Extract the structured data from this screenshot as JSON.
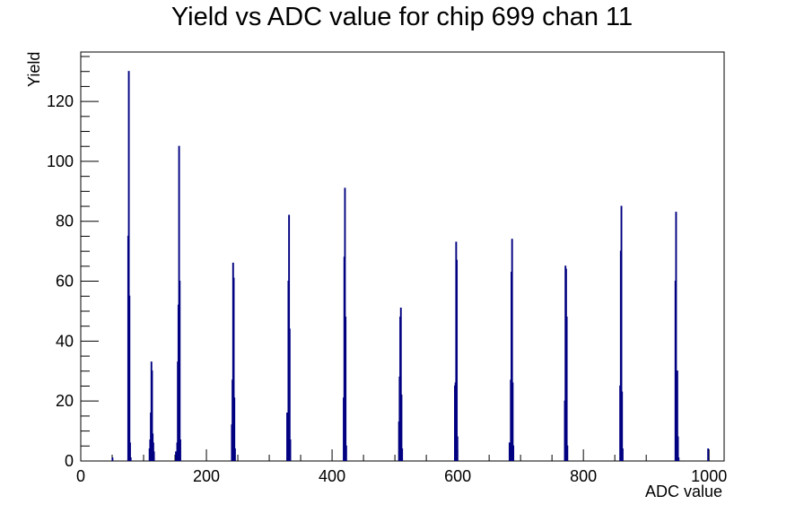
{
  "chart_data": {
    "type": "bar",
    "style": "histogram",
    "title": "Yield vs ADC value for chip 699 chan 11",
    "xlabel": "ADC value",
    "ylabel": "Yield",
    "xlim": [
      0,
      1024
    ],
    "ylim": [
      0,
      136.5
    ],
    "x_ticks": [
      0,
      200,
      400,
      600,
      800,
      1000
    ],
    "y_ticks": [
      0,
      20,
      40,
      60,
      80,
      100,
      120
    ],
    "grid": false,
    "legend": "none",
    "line_color": "#000080",
    "bins": [
      {
        "x": 50,
        "y": 1
      },
      {
        "x": 75,
        "y": 75
      },
      {
        "x": 76,
        "y": 130
      },
      {
        "x": 77,
        "y": 55
      },
      {
        "x": 78,
        "y": 6
      },
      {
        "x": 79,
        "y": 1
      },
      {
        "x": 109,
        "y": 4
      },
      {
        "x": 110,
        "y": 7
      },
      {
        "x": 111,
        "y": 16
      },
      {
        "x": 112,
        "y": 33
      },
      {
        "x": 113,
        "y": 30
      },
      {
        "x": 114,
        "y": 9
      },
      {
        "x": 115,
        "y": 6
      },
      {
        "x": 116,
        "y": 3
      },
      {
        "x": 151,
        "y": 3
      },
      {
        "x": 153,
        "y": 6
      },
      {
        "x": 154,
        "y": 33
      },
      {
        "x": 155,
        "y": 52
      },
      {
        "x": 156,
        "y": 105
      },
      {
        "x": 157,
        "y": 60
      },
      {
        "x": 158,
        "y": 7
      },
      {
        "x": 240,
        "y": 12
      },
      {
        "x": 241,
        "y": 27
      },
      {
        "x": 242,
        "y": 66
      },
      {
        "x": 243,
        "y": 61
      },
      {
        "x": 244,
        "y": 21
      },
      {
        "x": 245,
        "y": 4
      },
      {
        "x": 328,
        "y": 16
      },
      {
        "x": 329,
        "y": 12
      },
      {
        "x": 330,
        "y": 60
      },
      {
        "x": 331,
        "y": 82
      },
      {
        "x": 332,
        "y": 44
      },
      {
        "x": 333,
        "y": 7
      },
      {
        "x": 418,
        "y": 21
      },
      {
        "x": 419,
        "y": 68
      },
      {
        "x": 420,
        "y": 91
      },
      {
        "x": 421,
        "y": 48
      },
      {
        "x": 422,
        "y": 5
      },
      {
        "x": 506,
        "y": 13
      },
      {
        "x": 507,
        "y": 28
      },
      {
        "x": 508,
        "y": 48
      },
      {
        "x": 509,
        "y": 51
      },
      {
        "x": 510,
        "y": 22
      },
      {
        "x": 511,
        "y": 4
      },
      {
        "x": 595,
        "y": 25
      },
      {
        "x": 596,
        "y": 26
      },
      {
        "x": 597,
        "y": 73
      },
      {
        "x": 598,
        "y": 67
      },
      {
        "x": 599,
        "y": 8
      },
      {
        "x": 682,
        "y": 6
      },
      {
        "x": 684,
        "y": 27
      },
      {
        "x": 685,
        "y": 63
      },
      {
        "x": 686,
        "y": 74
      },
      {
        "x": 687,
        "y": 26
      },
      {
        "x": 688,
        "y": 5
      },
      {
        "x": 770,
        "y": 20
      },
      {
        "x": 771,
        "y": 65
      },
      {
        "x": 772,
        "y": 64
      },
      {
        "x": 773,
        "y": 48
      },
      {
        "x": 774,
        "y": 5
      },
      {
        "x": 858,
        "y": 25
      },
      {
        "x": 859,
        "y": 70
      },
      {
        "x": 860,
        "y": 85
      },
      {
        "x": 861,
        "y": 23
      },
      {
        "x": 862,
        "y": 4
      },
      {
        "x": 946,
        "y": 60
      },
      {
        "x": 947,
        "y": 83
      },
      {
        "x": 948,
        "y": 26
      },
      {
        "x": 949,
        "y": 30
      },
      {
        "x": 950,
        "y": 8
      },
      {
        "x": 951,
        "y": 1
      },
      {
        "x": 998,
        "y": 4
      }
    ]
  }
}
